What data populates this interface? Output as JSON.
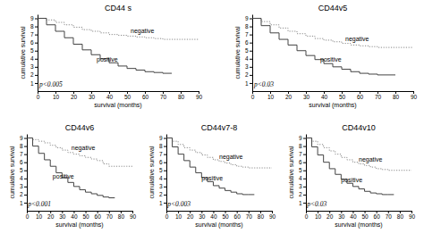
{
  "chart_data": [
    {
      "type": "step",
      "title": "CD44 s",
      "x_label": "survival (months)",
      "y_label": "cumulative survival",
      "xlim": [
        0,
        90
      ],
      "ylim": [
        0,
        9.5
      ],
      "xticks": [
        0,
        10,
        20,
        30,
        40,
        50,
        60,
        70,
        80,
        90
      ],
      "yticks": [
        1,
        2,
        3,
        4,
        5,
        6,
        7,
        8,
        9
      ],
      "series": [
        {
          "x": [
            0,
            5,
            10,
            15,
            20,
            25,
            30,
            35,
            40,
            45,
            50,
            55,
            60,
            65,
            70,
            75,
            80,
            85,
            90
          ],
          "values": [
            9,
            8.8,
            8.5,
            8.2,
            7.9,
            7.6,
            7.4,
            7.2,
            7.0,
            6.9,
            6.8,
            6.7,
            6.6,
            6.5,
            6.4,
            6.4,
            6.4,
            6.4,
            6.4
          ],
          "color": "#888888",
          "line_style": "dotted"
        },
        {
          "x": [
            0,
            5,
            10,
            15,
            20,
            25,
            30,
            35,
            40,
            45,
            50,
            55,
            60,
            65,
            70,
            75
          ],
          "values": [
            9,
            8.2,
            7.4,
            6.6,
            5.8,
            5.1,
            4.5,
            4.0,
            3.5,
            3.1,
            2.8,
            2.6,
            2.4,
            2.3,
            2.2,
            2.2
          ],
          "color": "#444444",
          "line_style": "solid"
        }
      ],
      "annotations": [
        {
          "text": "negative",
          "x": 52,
          "y": 7.2
        },
        {
          "text": "positive",
          "x": 33,
          "y": 3.6
        },
        {
          "text": "p<0.005",
          "x": 1,
          "y": 0.6
        }
      ]
    },
    {
      "type": "step",
      "title": "CD44v5",
      "x_label": "survival (months)",
      "y_label": "cumulative survival",
      "xlim": [
        0,
        90
      ],
      "ylim": [
        0,
        9.5
      ],
      "xticks": [
        0,
        10,
        20,
        30,
        40,
        50,
        60,
        70,
        80,
        90
      ],
      "yticks": [
        1,
        2,
        3,
        4,
        5,
        6,
        7,
        8,
        9
      ],
      "series": [
        {
          "x": [
            0,
            5,
            10,
            15,
            20,
            25,
            30,
            35,
            40,
            45,
            50,
            55,
            60,
            65,
            70,
            75,
            80,
            85,
            90
          ],
          "values": [
            9,
            8.6,
            8.2,
            7.8,
            7.4,
            7.1,
            6.8,
            6.5,
            6.3,
            6.1,
            5.9,
            5.7,
            5.6,
            5.5,
            5.4,
            5.4,
            5.4,
            5.4,
            5.4
          ],
          "color": "#888888",
          "line_style": "dotted"
        },
        {
          "x": [
            0,
            5,
            10,
            15,
            20,
            25,
            30,
            35,
            40,
            45,
            50,
            55,
            60,
            65,
            70,
            75,
            80
          ],
          "values": [
            9,
            8.1,
            7.2,
            6.4,
            5.7,
            5.0,
            4.4,
            3.9,
            3.4,
            3.0,
            2.7,
            2.4,
            2.2,
            2.1,
            2.0,
            2.0,
            2.0
          ],
          "color": "#444444",
          "line_style": "solid"
        }
      ],
      "annotations": [
        {
          "text": "negative",
          "x": 52,
          "y": 6.2
        },
        {
          "text": "positive",
          "x": 38,
          "y": 3.6
        },
        {
          "text": "p<0.03",
          "x": 1,
          "y": 0.6
        }
      ]
    },
    {
      "type": "step",
      "title": "CD44v6",
      "x_label": "survival (months)",
      "y_label": "cumulative survival",
      "xlim": [
        0,
        90
      ],
      "ylim": [
        0,
        9.5
      ],
      "xticks": [
        0,
        10,
        20,
        30,
        40,
        50,
        60,
        70,
        80,
        90
      ],
      "yticks": [
        1,
        2,
        3,
        4,
        5,
        6,
        7,
        8,
        9
      ],
      "series": [
        {
          "x": [
            0,
            5,
            10,
            15,
            20,
            25,
            30,
            35,
            40,
            45,
            50,
            55,
            60,
            65,
            70,
            75,
            80,
            85,
            90
          ],
          "values": [
            9,
            8.8,
            8.6,
            8.4,
            8.1,
            7.8,
            7.5,
            7.2,
            7.0,
            6.8,
            6.6,
            6.4,
            6.2,
            5.8,
            5.5,
            5.5,
            5.5,
            5.5,
            5.5
          ],
          "color": "#888888",
          "line_style": "dotted"
        },
        {
          "x": [
            0,
            5,
            10,
            15,
            20,
            25,
            30,
            35,
            40,
            45,
            50,
            55,
            60,
            65,
            70,
            75
          ],
          "values": [
            9,
            8.0,
            7.1,
            6.3,
            5.5,
            4.7,
            4.1,
            3.5,
            3.0,
            2.6,
            2.3,
            2.1,
            1.9,
            1.7,
            1.6,
            1.6
          ],
          "color": "#444444",
          "line_style": "solid"
        }
      ],
      "annotations": [
        {
          "text": "negative",
          "x": 38,
          "y": 7.5
        },
        {
          "text": "positive",
          "x": 22,
          "y": 4.0
        },
        {
          "text": "p<0.001",
          "x": 1,
          "y": 0.6
        }
      ]
    },
    {
      "type": "step",
      "title": "CD44v7-8",
      "x_label": "survival (months)",
      "y_label": "cumulative survival",
      "xlim": [
        0,
        90
      ],
      "ylim": [
        0,
        9.5
      ],
      "xticks": [
        0,
        10,
        20,
        30,
        40,
        50,
        60,
        70,
        80,
        90
      ],
      "yticks": [
        1,
        2,
        3,
        4,
        5,
        6,
        7,
        8,
        9
      ],
      "series": [
        {
          "x": [
            0,
            5,
            10,
            15,
            20,
            25,
            30,
            35,
            40,
            45,
            50,
            55,
            60,
            65,
            70,
            75,
            80,
            85,
            90
          ],
          "values": [
            9,
            8.6,
            8.2,
            7.8,
            7.5,
            7.2,
            6.9,
            6.6,
            6.3,
            6.1,
            5.9,
            5.7,
            5.5,
            5.4,
            5.3,
            5.3,
            5.3,
            5.3,
            5.3
          ],
          "color": "#888888",
          "line_style": "dotted"
        },
        {
          "x": [
            0,
            5,
            10,
            15,
            20,
            25,
            30,
            35,
            40,
            45,
            50,
            55,
            60,
            65,
            70,
            75
          ],
          "values": [
            9,
            7.9,
            7.0,
            6.2,
            5.4,
            4.7,
            4.1,
            3.6,
            3.1,
            2.8,
            2.5,
            2.3,
            2.1,
            2.0,
            2.0,
            2.0
          ],
          "color": "#444444",
          "line_style": "solid"
        }
      ],
      "annotations": [
        {
          "text": "negative",
          "x": 45,
          "y": 6.4
        },
        {
          "text": "positive",
          "x": 30,
          "y": 3.8
        },
        {
          "text": "p<0.003",
          "x": 1,
          "y": 0.6
        }
      ]
    },
    {
      "type": "step",
      "title": "CD44v10",
      "x_label": "survival (months)",
      "y_label": "cumulative survival",
      "xlim": [
        0,
        90
      ],
      "ylim": [
        0,
        9.5
      ],
      "xticks": [
        0,
        10,
        20,
        30,
        40,
        50,
        60,
        70,
        80,
        90
      ],
      "yticks": [
        1,
        2,
        3,
        4,
        5,
        6,
        7,
        8,
        9
      ],
      "series": [
        {
          "x": [
            0,
            5,
            10,
            15,
            20,
            25,
            30,
            35,
            40,
            45,
            50,
            55,
            60,
            65,
            70,
            75,
            80,
            85,
            90
          ],
          "values": [
            9,
            8.6,
            8.2,
            7.8,
            7.4,
            7.0,
            6.6,
            6.3,
            6.0,
            5.8,
            5.6,
            5.4,
            5.2,
            5.1,
            5.0,
            5.0,
            5.0,
            5.0,
            5.0
          ],
          "color": "#888888",
          "line_style": "dotted"
        },
        {
          "x": [
            0,
            5,
            10,
            15,
            20,
            25,
            30,
            35,
            40,
            45,
            50,
            55,
            60,
            65,
            70,
            75
          ],
          "values": [
            9,
            7.9,
            6.9,
            6.0,
            5.2,
            4.5,
            3.9,
            3.4,
            3.0,
            2.7,
            2.4,
            2.2,
            2.1,
            2.0,
            2.0,
            2.0
          ],
          "color": "#444444",
          "line_style": "solid"
        }
      ],
      "annotations": [
        {
          "text": "negative",
          "x": 45,
          "y": 6.1
        },
        {
          "text": "positive",
          "x": 30,
          "y": 3.5
        },
        {
          "text": "p<0.03",
          "x": 1,
          "y": 0.6
        }
      ]
    }
  ]
}
